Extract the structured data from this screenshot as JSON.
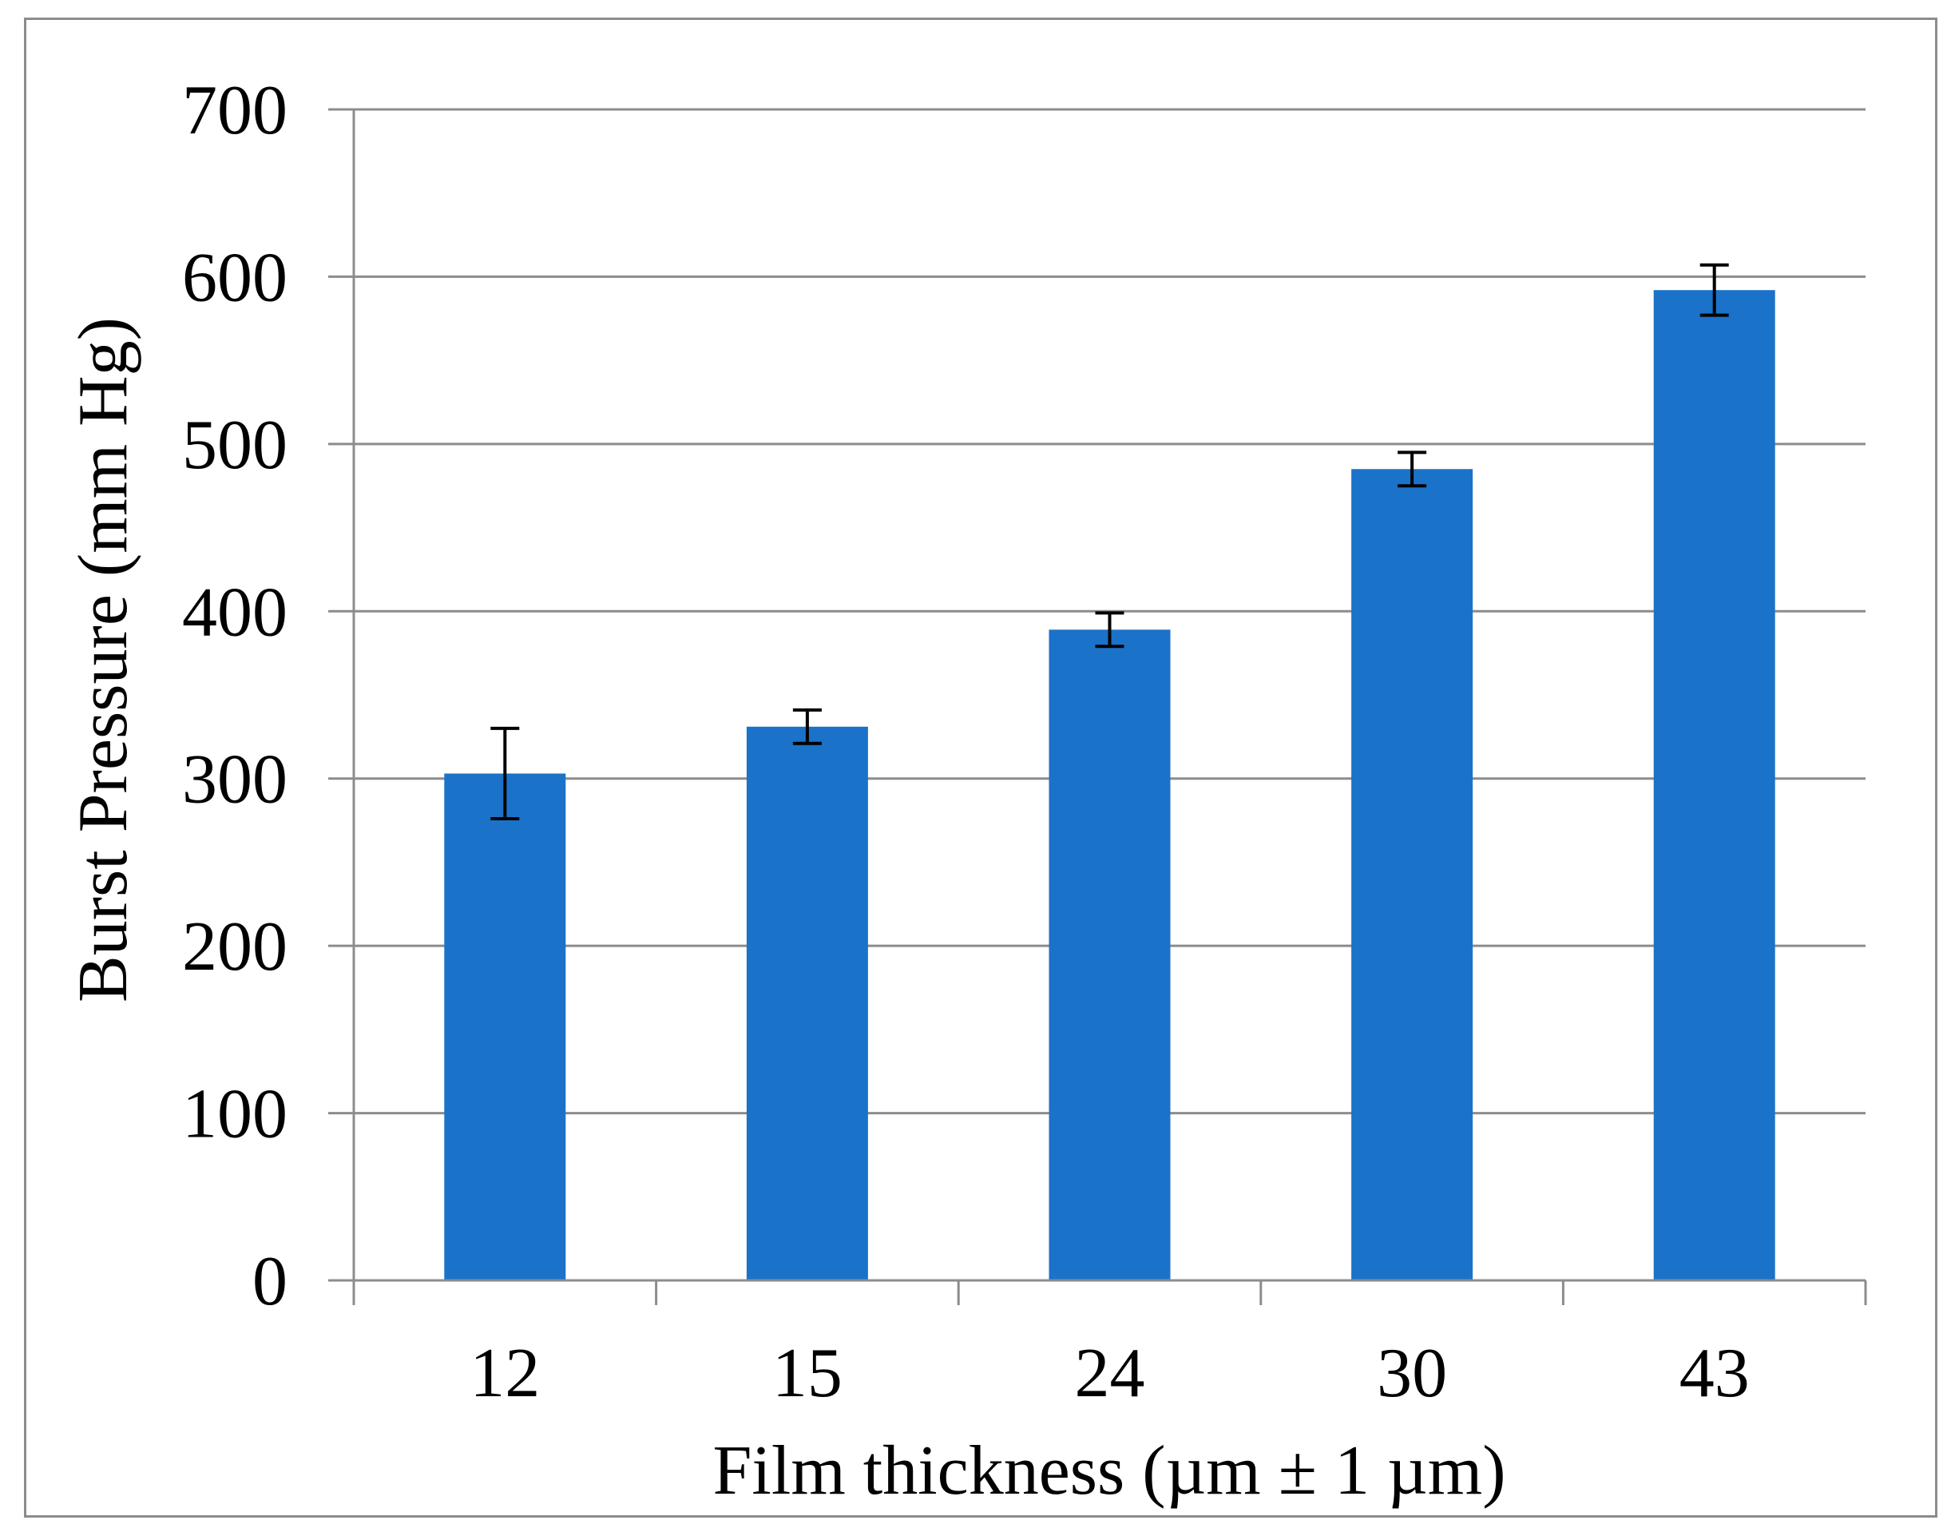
{
  "chart_data": {
    "type": "bar",
    "title": "",
    "xlabel": "Film thickness (µm ± 1 µm)",
    "ylabel": "Burst Pressure (mm Hg)",
    "categories": [
      "12",
      "15",
      "24",
      "30",
      "43"
    ],
    "values": [
      303,
      331,
      389,
      485,
      592
    ],
    "error": [
      27,
      10,
      10,
      10,
      15
    ],
    "ylim": [
      0,
      700
    ],
    "yticks": [
      0,
      100,
      200,
      300,
      400,
      500,
      600,
      700
    ],
    "grid": true,
    "legend": "none",
    "colors": {
      "bar": "#1b72c9",
      "grid": "#8c8c8c",
      "axis": "#8c8c8c",
      "error_bar": "#000000",
      "frame": "#8c8c8c"
    }
  }
}
